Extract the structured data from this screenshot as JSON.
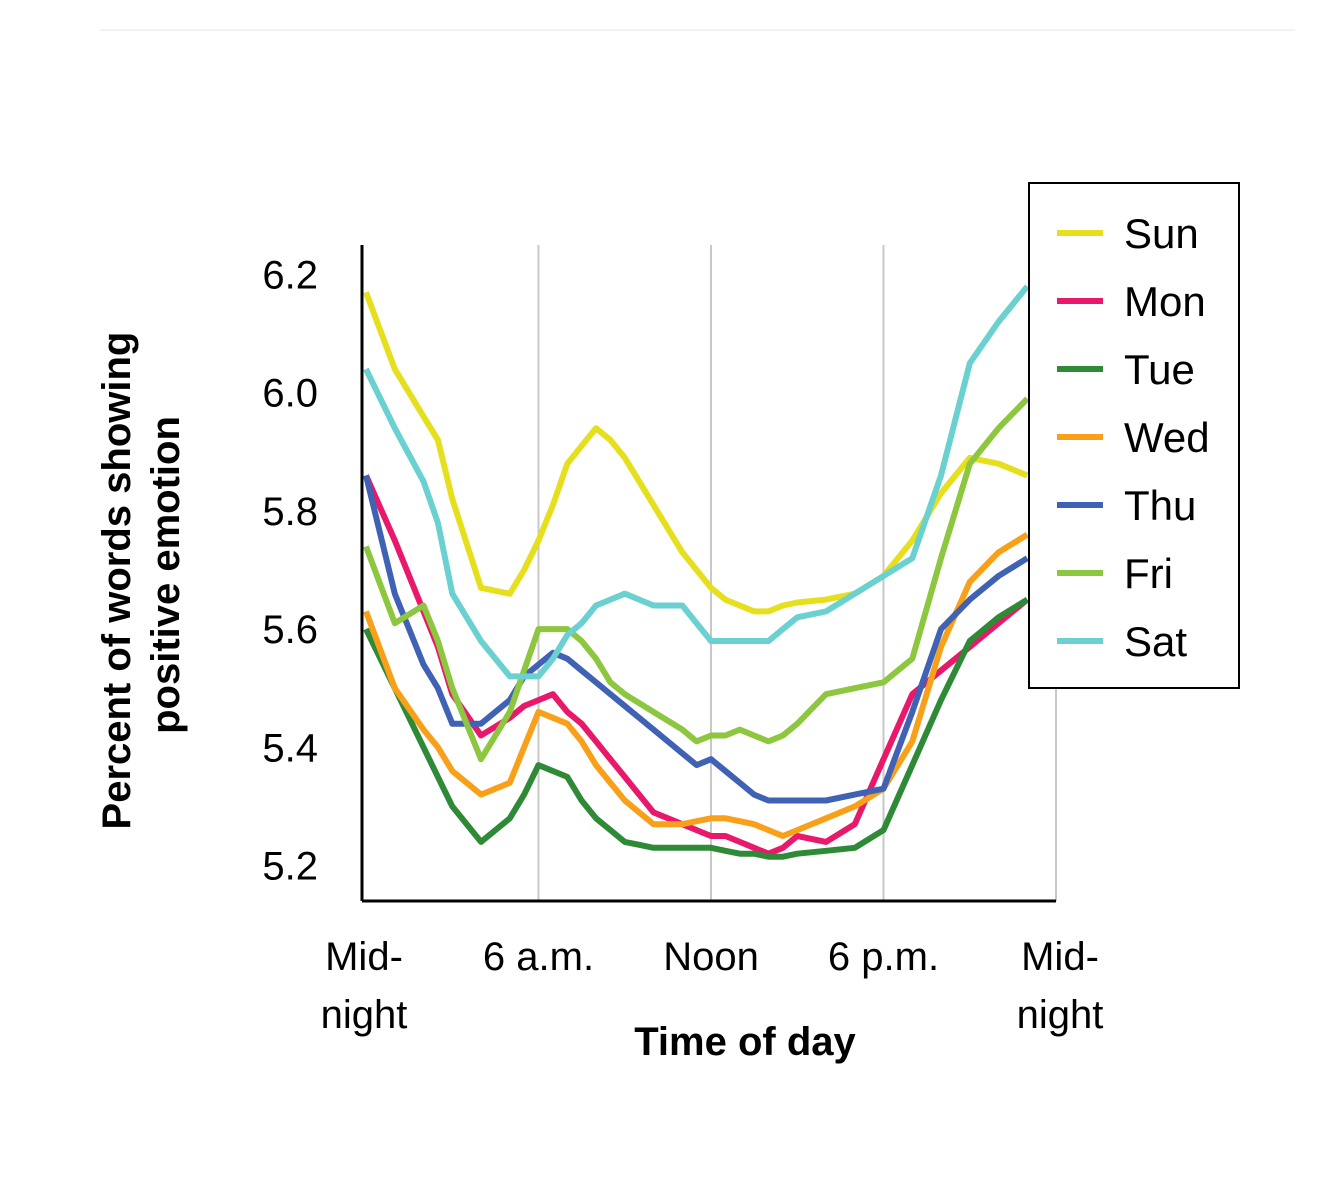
{
  "chart_data": {
    "type": "line",
    "xlabel": "Time of day",
    "ylabel_line1": "Percent of words showing",
    "ylabel_line2": "positive emotion",
    "ylim": [
      5.14,
      6.25
    ],
    "xlim": [
      0,
      24
    ],
    "y_ticks": [
      {
        "value": 5.2,
        "label": "5.2"
      },
      {
        "value": 5.4,
        "label": "5.4"
      },
      {
        "value": 5.6,
        "label": "5.6"
      },
      {
        "value": 5.8,
        "label": "5.8"
      },
      {
        "value": 6.0,
        "label": "6.0"
      },
      {
        "value": 6.2,
        "label": "6.2"
      }
    ],
    "x_ticks": [
      {
        "value": 0,
        "lines": [
          "Mid-",
          "night"
        ]
      },
      {
        "value": 6,
        "lines": [
          "6 a.m."
        ]
      },
      {
        "value": 12,
        "lines": [
          "Noon"
        ]
      },
      {
        "value": 18,
        "lines": [
          "6 p.m."
        ]
      },
      {
        "value": 24,
        "lines": [
          "Mid-",
          "night"
        ]
      }
    ],
    "grid": "vertical",
    "legend_position": "top-right",
    "x": [
      0,
      1,
      2,
      2.5,
      3,
      4,
      5,
      5.5,
      6,
      6.5,
      7,
      7.5,
      8,
      8.5,
      9,
      10,
      11,
      11.5,
      12,
      12.5,
      13,
      13.5,
      14,
      14.5,
      15,
      16,
      17,
      18,
      19,
      20,
      21,
      22,
      23
    ],
    "series": [
      {
        "name": "Sun",
        "color": "#e6df1e",
        "values": [
          6.17,
          6.04,
          5.96,
          5.92,
          5.82,
          5.67,
          5.66,
          5.7,
          5.75,
          5.81,
          5.88,
          5.91,
          5.94,
          5.92,
          5.89,
          5.81,
          5.73,
          5.7,
          5.67,
          5.65,
          5.64,
          5.63,
          5.63,
          5.64,
          5.645,
          5.65,
          5.66,
          5.69,
          5.75,
          5.83,
          5.89,
          5.88,
          5.86
        ]
      },
      {
        "name": "Mon",
        "color": "#e8186b",
        "values": [
          5.86,
          5.75,
          5.63,
          5.57,
          5.49,
          5.42,
          5.45,
          5.47,
          5.48,
          5.49,
          5.46,
          5.44,
          5.41,
          5.38,
          5.35,
          5.29,
          5.27,
          5.26,
          5.25,
          5.25,
          5.24,
          5.23,
          5.22,
          5.23,
          5.25,
          5.24,
          5.27,
          5.38,
          5.49,
          5.53,
          5.57,
          5.61,
          5.65
        ]
      },
      {
        "name": "Tue",
        "color": "#2e8a36",
        "values": [
          5.6,
          5.5,
          5.4,
          5.35,
          5.3,
          5.24,
          5.28,
          5.32,
          5.37,
          5.36,
          5.35,
          5.31,
          5.28,
          5.26,
          5.24,
          5.23,
          5.23,
          5.23,
          5.23,
          5.225,
          5.22,
          5.22,
          5.215,
          5.215,
          5.22,
          5.225,
          5.23,
          5.26,
          5.37,
          5.48,
          5.58,
          5.62,
          5.65
        ]
      },
      {
        "name": "Wed",
        "color": "#f9a01b",
        "values": [
          5.63,
          5.5,
          5.43,
          5.4,
          5.36,
          5.32,
          5.34,
          5.4,
          5.46,
          5.45,
          5.44,
          5.41,
          5.37,
          5.34,
          5.31,
          5.27,
          5.27,
          5.275,
          5.28,
          5.28,
          5.275,
          5.27,
          5.26,
          5.25,
          5.26,
          5.28,
          5.3,
          5.33,
          5.41,
          5.57,
          5.68,
          5.73,
          5.76
        ]
      },
      {
        "name": "Thu",
        "color": "#3f62b5",
        "values": [
          5.86,
          5.66,
          5.54,
          5.5,
          5.44,
          5.44,
          5.48,
          5.52,
          5.54,
          5.56,
          5.55,
          5.53,
          5.51,
          5.49,
          5.47,
          5.43,
          5.39,
          5.37,
          5.38,
          5.36,
          5.34,
          5.32,
          5.31,
          5.31,
          5.31,
          5.31,
          5.32,
          5.33,
          5.46,
          5.6,
          5.65,
          5.69,
          5.72
        ]
      },
      {
        "name": "Fri",
        "color": "#8dc63f",
        "values": [
          5.74,
          5.61,
          5.64,
          5.58,
          5.5,
          5.38,
          5.46,
          5.53,
          5.6,
          5.6,
          5.6,
          5.58,
          5.55,
          5.51,
          5.49,
          5.46,
          5.43,
          5.41,
          5.42,
          5.42,
          5.43,
          5.42,
          5.41,
          5.42,
          5.44,
          5.49,
          5.5,
          5.51,
          5.55,
          5.72,
          5.88,
          5.94,
          5.99
        ]
      },
      {
        "name": "Sat",
        "color": "#6ad0d0",
        "values": [
          6.04,
          5.94,
          5.85,
          5.78,
          5.66,
          5.58,
          5.52,
          5.52,
          5.52,
          5.55,
          5.59,
          5.61,
          5.64,
          5.65,
          5.66,
          5.64,
          5.64,
          5.61,
          5.58,
          5.58,
          5.58,
          5.58,
          5.58,
          5.6,
          5.62,
          5.63,
          5.66,
          5.69,
          5.72,
          5.86,
          6.05,
          6.12,
          6.18
        ]
      }
    ]
  }
}
